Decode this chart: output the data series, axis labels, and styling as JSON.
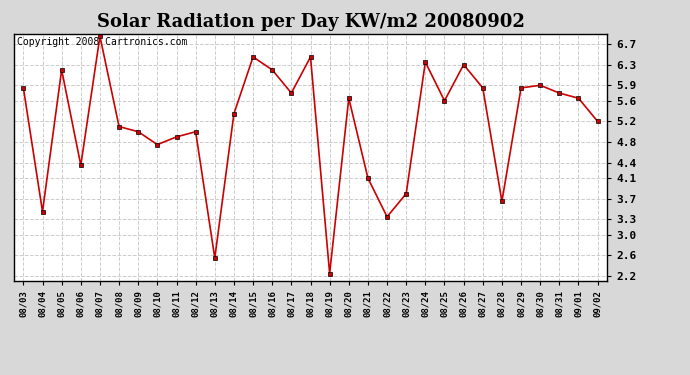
{
  "title": "Solar Radiation per Day KW/m2 20080902",
  "copyright": "Copyright 2008 Cartronics.com",
  "dates": [
    "08/03",
    "08/04",
    "08/05",
    "08/06",
    "08/07",
    "08/08",
    "08/09",
    "08/10",
    "08/11",
    "08/12",
    "08/13",
    "08/14",
    "08/15",
    "08/16",
    "08/17",
    "08/18",
    "08/19",
    "08/20",
    "08/21",
    "08/22",
    "08/23",
    "08/24",
    "08/25",
    "08/26",
    "08/27",
    "08/28",
    "08/29",
    "08/30",
    "08/31",
    "09/01",
    "09/02"
  ],
  "values": [
    5.85,
    3.45,
    6.2,
    4.35,
    6.85,
    5.1,
    5.0,
    4.75,
    4.9,
    5.0,
    2.55,
    5.35,
    6.45,
    6.2,
    5.75,
    6.45,
    2.25,
    5.65,
    4.1,
    3.35,
    3.8,
    6.35,
    5.6,
    6.3,
    5.85,
    3.65,
    5.85,
    5.9,
    5.75,
    5.65,
    5.2
  ],
  "line_color": "#cc0000",
  "marker": "s",
  "marker_size": 3,
  "plot_bg_color": "#ffffff",
  "fig_bg_color": "#d8d8d8",
  "grid_color": "#cccccc",
  "ylim": [
    2.1,
    6.9
  ],
  "yticks": [
    2.2,
    2.6,
    3.0,
    3.3,
    3.7,
    4.1,
    4.4,
    4.8,
    5.2,
    5.6,
    5.9,
    6.3,
    6.7
  ],
  "title_fontsize": 13,
  "copyright_fontsize": 7
}
